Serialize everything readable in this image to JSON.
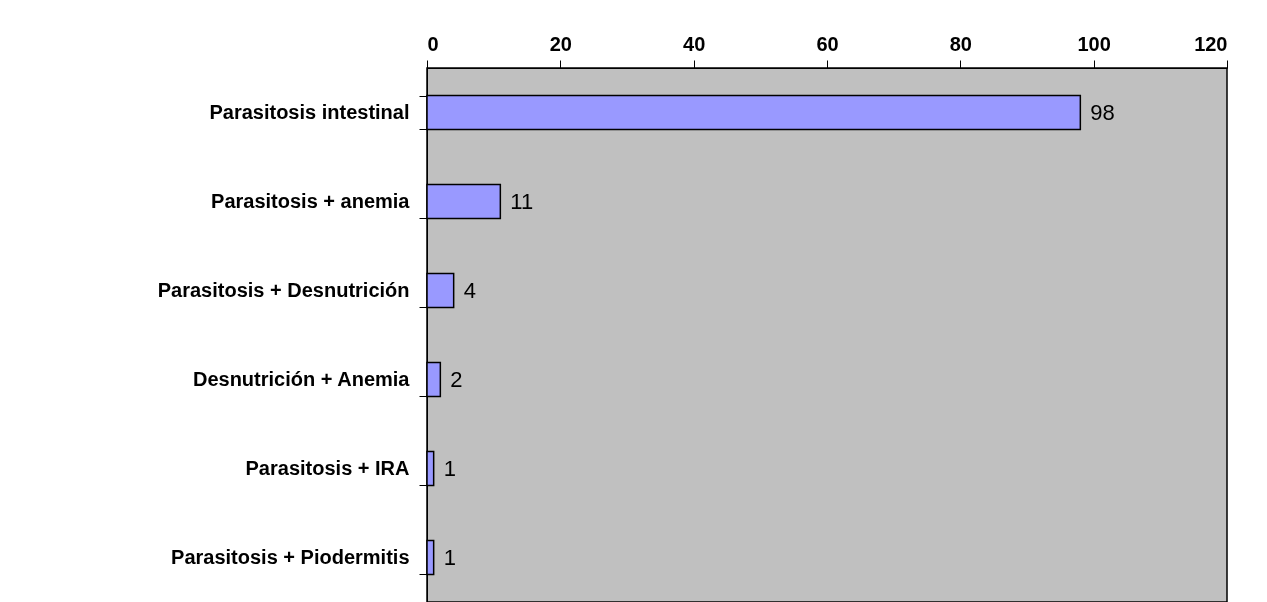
{
  "chart_data": {
    "type": "bar",
    "orientation": "horizontal",
    "categories": [
      "Parasitosis intestinal",
      "Parasitosis + anemia",
      "Parasitosis + Desnutrición",
      "Desnutrición + Anemia",
      "Parasitosis + IRA",
      "Parasitosis + Piodermitis"
    ],
    "values": [
      98,
      11,
      4,
      2,
      1,
      1
    ],
    "color": "#9999ff",
    "xlim": [
      0,
      120
    ],
    "xticks": [
      0,
      20,
      40,
      60,
      80,
      100,
      120
    ],
    "grid": false,
    "data_labels": true
  }
}
